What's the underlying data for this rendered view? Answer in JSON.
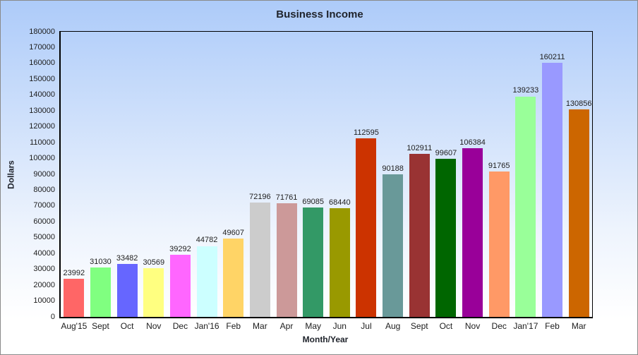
{
  "window": {
    "background_top_color": "#adcbf9",
    "background_bottom_color": "#ffffff",
    "frame_border_color": "#8a8a8a",
    "axis_line_color": "#000000"
  },
  "chart_data": {
    "type": "bar",
    "title": "Business Income",
    "xlabel": "Month/Year",
    "ylabel": "Dollars",
    "categories": [
      "Aug'15",
      "Sept",
      "Oct",
      "Nov",
      "Dec",
      "Jan'16",
      "Feb",
      "Mar",
      "Apr",
      "May",
      "Jun",
      "Jul",
      "Aug",
      "Sept",
      "Oct",
      "Nov",
      "Dec",
      "Jan'17",
      "Feb",
      "Mar"
    ],
    "values": [
      23992,
      31030,
      33482,
      30569,
      39292,
      44782,
      49607,
      72196,
      71761,
      69085,
      68440,
      112595,
      90188,
      102911,
      99607,
      106384,
      91765,
      139233,
      160211,
      130856
    ],
    "bar_colors": [
      "#ff6666",
      "#80ff80",
      "#6666ff",
      "#ffff80",
      "#ff66ff",
      "#ccffff",
      "#ffd466",
      "#cccccc",
      "#cc9999",
      "#339966",
      "#999900",
      "#cc3300",
      "#699999",
      "#993333",
      "#006600",
      "#990099",
      "#ff9966",
      "#99ff99",
      "#9999ff",
      "#cc6600"
    ],
    "ylim": [
      0,
      180000
    ],
    "ytick_step": 10000,
    "ytick_labels": [
      "0",
      "10000",
      "20000",
      "30000",
      "40000",
      "50000",
      "60000",
      "70000",
      "80000",
      "90000",
      "100000",
      "110000",
      "120000",
      "130000",
      "140000",
      "150000",
      "160000",
      "170000",
      "180000"
    ],
    "grid": false,
    "legend": "none",
    "data_labels": true
  }
}
